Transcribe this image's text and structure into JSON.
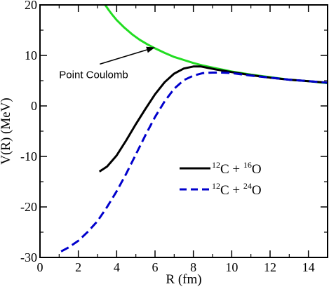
{
  "chart_data": {
    "type": "line",
    "title": "",
    "xlabel": "R (fm)",
    "ylabel": "V(R)  (MeV)",
    "xlim": [
      0,
      15
    ],
    "ylim": [
      -30,
      20
    ],
    "xticks": [
      0,
      2,
      4,
      6,
      8,
      10,
      12,
      14
    ],
    "yticks": [
      -30,
      -20,
      -10,
      0,
      10,
      20
    ],
    "grid": false,
    "legend_position": "center-right",
    "series": [
      {
        "key": "pc",
        "name": "Point Coulomb",
        "color": "#22dd22",
        "style": "solid",
        "x": [
          3.4,
          3.6,
          3.8,
          4.0,
          4.4,
          4.8,
          5.2,
          5.6,
          6.0,
          6.5,
          7.0,
          7.5,
          8.0,
          8.5,
          9.0,
          10.0,
          11.0,
          12.0,
          13.0,
          14.0,
          15.0
        ],
        "y": [
          20.0,
          18.9,
          17.9,
          17.0,
          15.5,
          14.2,
          13.1,
          12.2,
          11.4,
          10.5,
          9.7,
          9.1,
          8.5,
          8.0,
          7.6,
          6.8,
          6.2,
          5.7,
          5.2,
          4.9,
          4.5
        ]
      },
      {
        "key": "o16",
        "name": "12C + 16O",
        "label_parts": {
          "a_mass": "12",
          "a_sym": "C + ",
          "b_mass": "16",
          "b_sym": "O"
        },
        "color": "#000000",
        "style": "solid",
        "x": [
          3.1,
          3.5,
          4.0,
          4.5,
          5.0,
          5.5,
          6.0,
          6.5,
          7.0,
          7.5,
          8.0,
          8.4,
          8.8,
          9.2,
          10.0,
          11.0,
          12.0,
          13.0,
          14.0,
          15.0
        ],
        "y": [
          -13.0,
          -12.0,
          -9.8,
          -6.8,
          -3.6,
          -0.6,
          2.3,
          4.7,
          6.4,
          7.4,
          7.8,
          7.8,
          7.5,
          7.2,
          6.7,
          6.1,
          5.6,
          5.2,
          4.9,
          4.6
        ]
      },
      {
        "key": "o24",
        "name": "12C + 24O",
        "label_parts": {
          "a_mass": "12",
          "a_sym": "C + ",
          "b_mass": "24",
          "b_sym": "O"
        },
        "color": "#0000cc",
        "style": "dashed",
        "x": [
          1.1,
          1.5,
          2.0,
          2.5,
          3.0,
          3.5,
          4.0,
          4.5,
          5.0,
          5.5,
          6.0,
          6.5,
          7.0,
          7.5,
          8.0,
          8.5,
          9.0,
          9.5,
          10.0,
          11.0,
          12.0,
          13.0,
          14.0,
          15.0
        ],
        "y": [
          -28.8,
          -28.0,
          -26.7,
          -24.9,
          -22.8,
          -20.0,
          -16.9,
          -13.4,
          -9.6,
          -5.8,
          -2.2,
          0.9,
          3.4,
          5.1,
          6.0,
          6.5,
          6.6,
          6.6,
          6.5,
          6.0,
          5.6,
          5.2,
          4.9,
          4.6
        ]
      }
    ],
    "annotations": [
      {
        "text": "Point Coulomb",
        "x": 1.0,
        "y": 5.5,
        "arrow_to": [
          6.0,
          11.6
        ]
      }
    ]
  }
}
